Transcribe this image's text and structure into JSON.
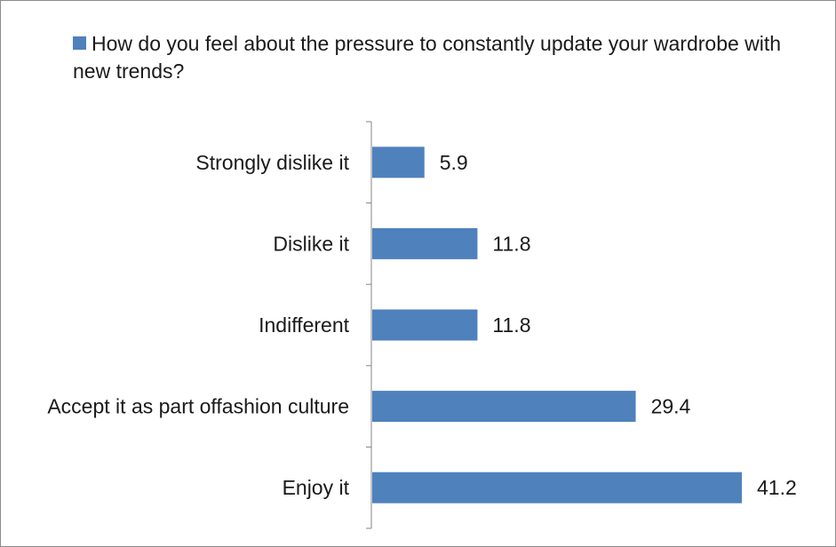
{
  "chart_data": {
    "type": "bar",
    "orientation": "horizontal",
    "categories": [
      "Strongly dislike it",
      "Dislike it",
      "Indifferent",
      "Accept it as part offashion culture",
      "Enjoy it"
    ],
    "series": [
      {
        "name": "How do you feel about the pressure to constantly update your wardrobe with new trends?",
        "values": [
          5.9,
          11.8,
          11.8,
          29.4,
          41.2
        ],
        "color": "#4f81bd"
      }
    ],
    "data_labels": [
      "5.9",
      "11.8",
      "11.8",
      "29.4",
      "41.2"
    ],
    "xlim": [
      0,
      45
    ],
    "grid": false,
    "legend_position": "top"
  }
}
